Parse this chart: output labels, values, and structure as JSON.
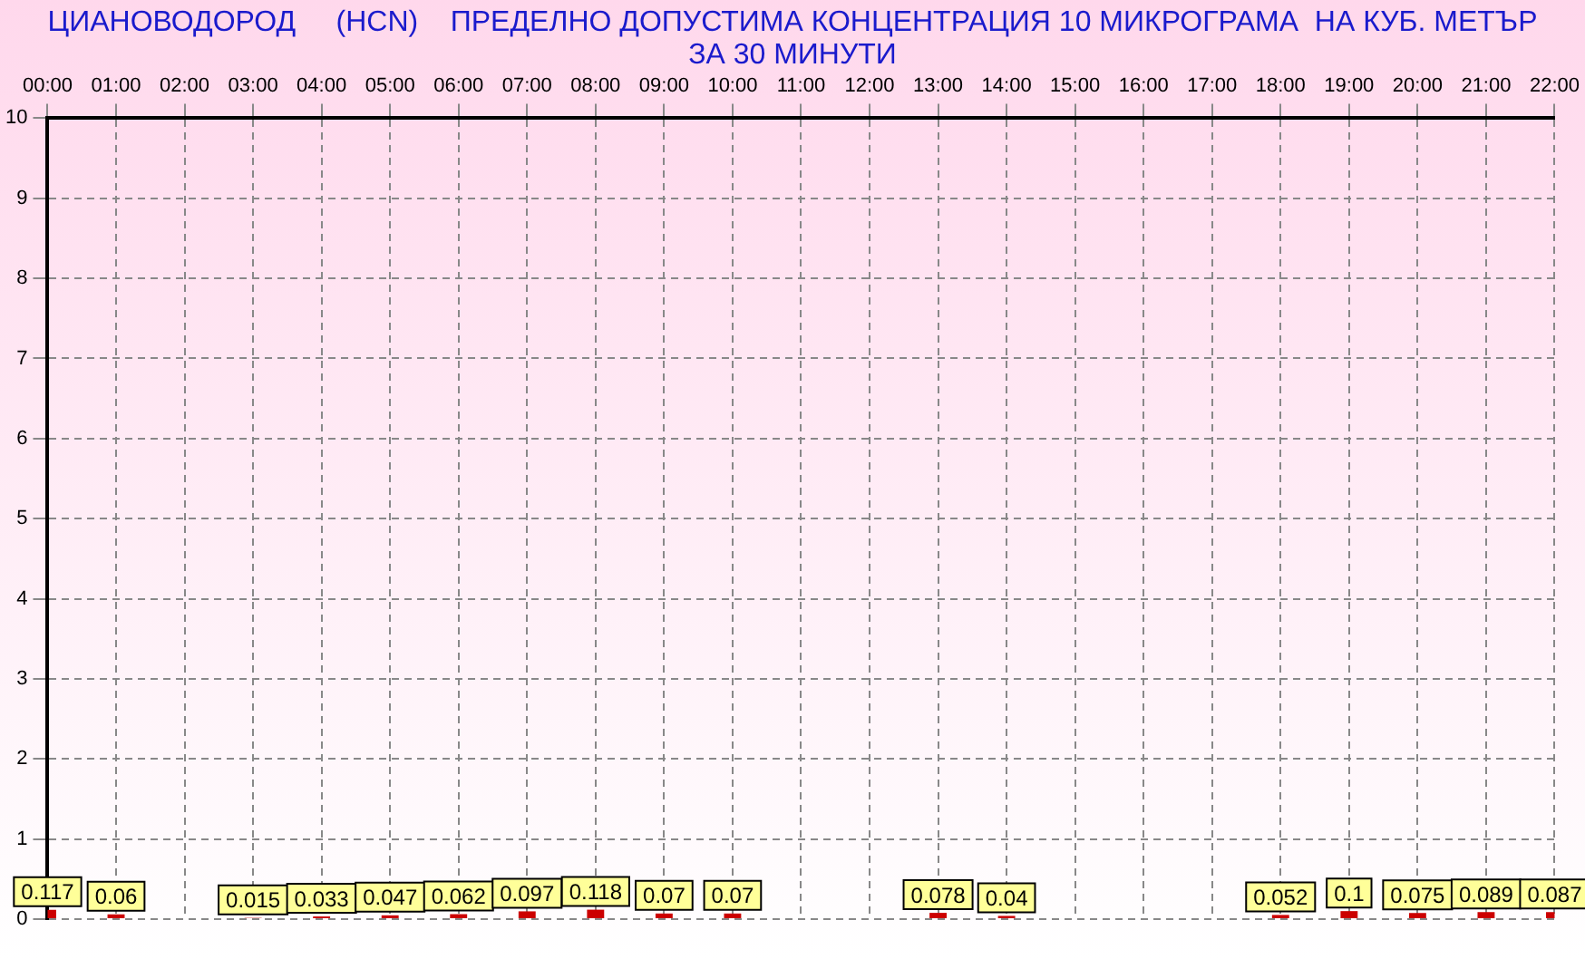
{
  "chart_data": {
    "type": "bar",
    "title": "ЦИАНОВОДОРОД     (HCN)    ПРЕДЕЛНО ДОПУСТИМА КОНЦЕНТРАЦИЯ 10 МИКРОГРАМА  НА КУБ. МЕТЪР",
    "subtitle": "ЗА 30 МИНУТИ",
    "categories": [
      "00:00",
      "01:00",
      "02:00",
      "03:00",
      "04:00",
      "05:00",
      "06:00",
      "07:00",
      "08:00",
      "09:00",
      "10:00",
      "11:00",
      "12:00",
      "13:00",
      "14:00",
      "15:00",
      "16:00",
      "17:00",
      "18:00",
      "19:00",
      "20:00",
      "21:00",
      "22:00"
    ],
    "values": [
      0.117,
      0.06,
      null,
      0.015,
      0.033,
      0.047,
      0.062,
      0.097,
      0.118,
      0.07,
      0.07,
      null,
      null,
      0.078,
      0.04,
      null,
      null,
      null,
      0.052,
      0.1,
      0.075,
      0.089,
      0.087
    ],
    "color": "#cc0000",
    "ylim": [
      0,
      10
    ],
    "yticks": [
      0,
      1,
      2,
      3,
      4,
      5,
      6,
      7,
      8,
      9,
      10
    ],
    "grid": true,
    "data_labels": true
  }
}
